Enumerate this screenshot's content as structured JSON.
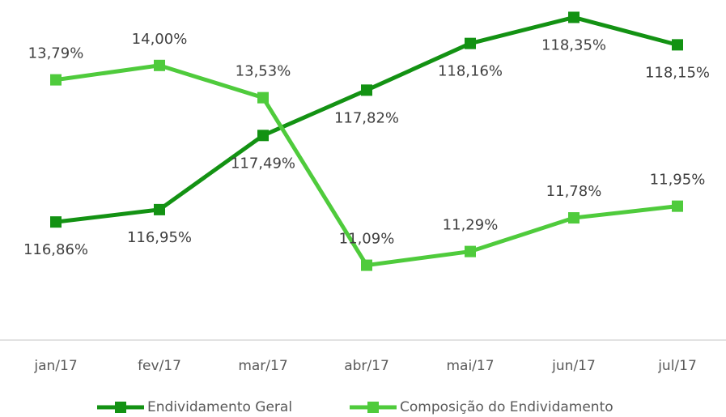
{
  "chart_data": {
    "type": "line",
    "categories": [
      "jan/17",
      "fev/17",
      "mar/17",
      "abr/17",
      "mai/17",
      "jun/17",
      "jul/17"
    ],
    "series": [
      {
        "name": "Endividamento Geral",
        "color": "#139213",
        "values": [
          116.86,
          116.95,
          117.49,
          117.82,
          118.16,
          118.35,
          118.15
        ],
        "value_labels": [
          "116,86%",
          "116,95%",
          "117,49%",
          "117,82%",
          "118,16%",
          "118,35%",
          "118,15%"
        ]
      },
      {
        "name": "Composição do Endividamento",
        "color": "#4fcb3c",
        "axis": "y2",
        "values": [
          13.79,
          14.0,
          13.53,
          11.09,
          11.29,
          11.78,
          11.95
        ],
        "value_labels": [
          "13,79%",
          "14,00%",
          "13,53%",
          "11,09%",
          "11,29%",
          "11,78%",
          "11,95%"
        ]
      }
    ],
    "ylim": [
      116,
      118.5
    ],
    "y2lim": [
      10,
      15
    ],
    "legend": "bottom"
  }
}
